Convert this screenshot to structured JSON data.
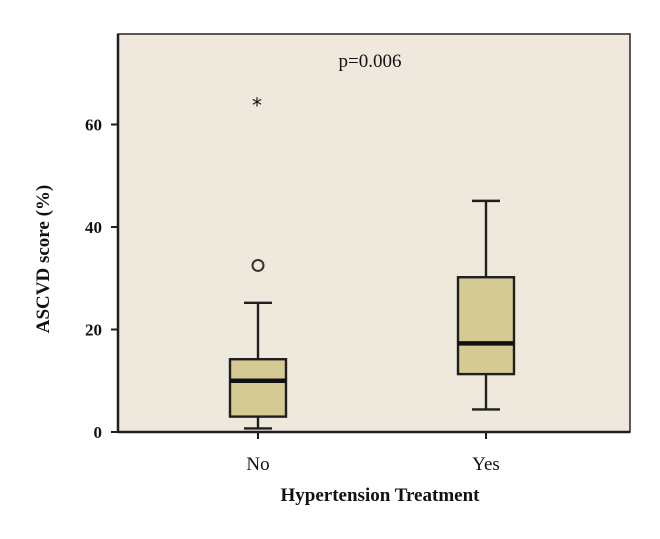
{
  "chart_data": {
    "type": "box",
    "title": "",
    "annotation": "p=0.006",
    "xlabel": "Hypertension Treatment",
    "ylabel": "ASCVD score (%)",
    "ylim": [
      0,
      75
    ],
    "yticks": [
      0,
      20,
      40,
      60
    ],
    "grid": false,
    "categories": [
      "No",
      "Yes"
    ],
    "boxes": [
      {
        "category": "No",
        "min": 0.7,
        "q1": 3,
        "median": 10,
        "q3": 14.2,
        "max": 25.2,
        "outliers": [
          {
            "value": 32.5,
            "marker": "circle"
          }
        ],
        "extremes": [
          {
            "value": 64.5,
            "marker": "asterisk"
          }
        ]
      },
      {
        "category": "Yes",
        "min": 4.4,
        "q1": 11.3,
        "median": 17.3,
        "q3": 30.2,
        "max": 45.1,
        "outliers": [],
        "extremes": []
      }
    ],
    "colors": {
      "box_fill": "#d5c994",
      "plot_background": "#efe9dd"
    }
  }
}
